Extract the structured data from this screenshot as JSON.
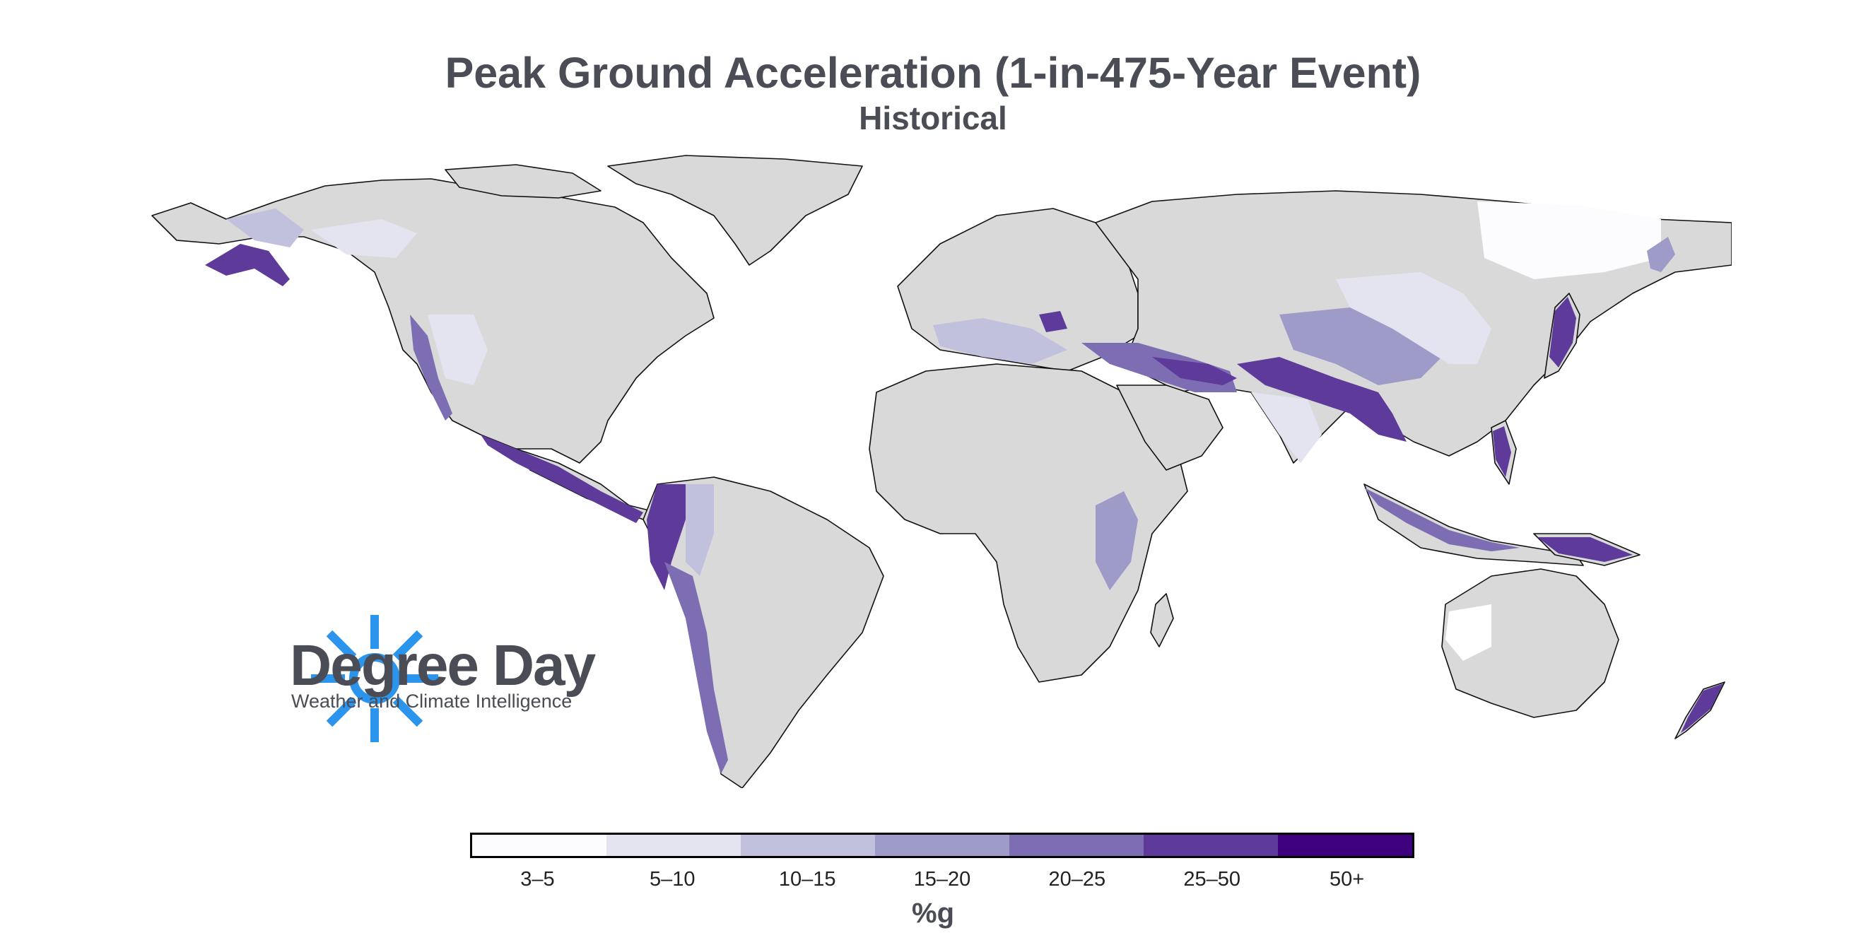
{
  "title": "Peak Ground Acceleration (1-in-475-Year Event)",
  "subtitle": "Historical",
  "logo": {
    "name": "Degree Day",
    "tagline": "Weather and Climate Intelligence",
    "color": "#2b95ee"
  },
  "legend": {
    "unit": "%g",
    "bins": [
      {
        "label": "3–5",
        "color": "#fcfbfd"
      },
      {
        "label": "5–10",
        "color": "#e4e3f0"
      },
      {
        "label": "10–15",
        "color": "#c1c0dd"
      },
      {
        "label": "15–20",
        "color": "#9e9bc9"
      },
      {
        "label": "20–25",
        "color": "#7d6db3"
      },
      {
        "label": "25–50",
        "color": "#5e3a9a"
      },
      {
        "label": "50+",
        "color": "#3f007d"
      }
    ]
  },
  "colors": {
    "land": "#d9d9d9",
    "border": "#111111",
    "text": "#4a4d55"
  },
  "regions": [
    {
      "name": "Alaska",
      "bin": "25–50"
    },
    {
      "name": "Andes",
      "bin": "25–50"
    },
    {
      "name": "Central America",
      "bin": "25–50"
    },
    {
      "name": "Himalaya",
      "bin": "25–50"
    },
    {
      "name": "Japan",
      "bin": "25–50"
    },
    {
      "name": "Indonesia",
      "bin": "25–50"
    },
    {
      "name": "New Zealand",
      "bin": "25–50"
    },
    {
      "name": "Siberia",
      "bin": "3–5"
    }
  ]
}
